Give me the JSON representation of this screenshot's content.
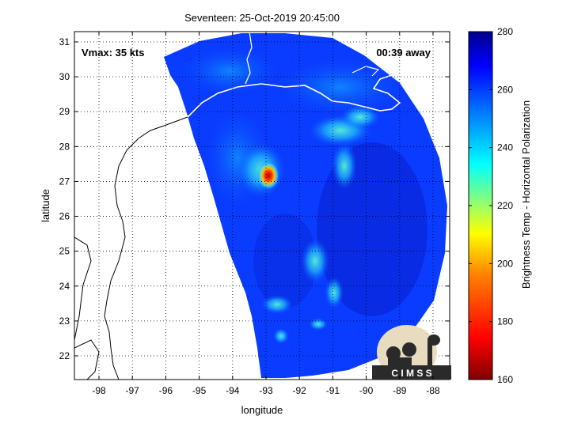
{
  "title": "Seventeen: 25-Oct-2019 20:45:00",
  "vmax_label": "Vmax: 35 kts",
  "time_away_label": "00:39 away",
  "xlabel": "longitude",
  "ylabel": "latitude",
  "x_ticks": [
    "-98",
    "-97",
    "-96",
    "-95",
    "-94",
    "-93",
    "-92",
    "-91",
    "-90",
    "-89",
    "-88"
  ],
  "y_ticks": [
    "22",
    "23",
    "24",
    "25",
    "26",
    "27",
    "28",
    "29",
    "30",
    "31"
  ],
  "colorbar": {
    "label": "Brightness Temp - Horizontal Polarization",
    "ticks": [
      "280",
      "260",
      "240",
      "220",
      "200",
      "180",
      "160"
    ],
    "range": [
      160,
      280
    ],
    "colors": [
      "#800000",
      "#ff0000",
      "#ff8000",
      "#ffff00",
      "#80ff80",
      "#00ffff",
      "#0080ff",
      "#0000ff",
      "#00008f"
    ]
  },
  "logo_text": "C I M S S",
  "colors": {
    "background_blue": "#0a3cff",
    "coastline_gray": "#ffffff",
    "land_coast": "#000000"
  }
}
